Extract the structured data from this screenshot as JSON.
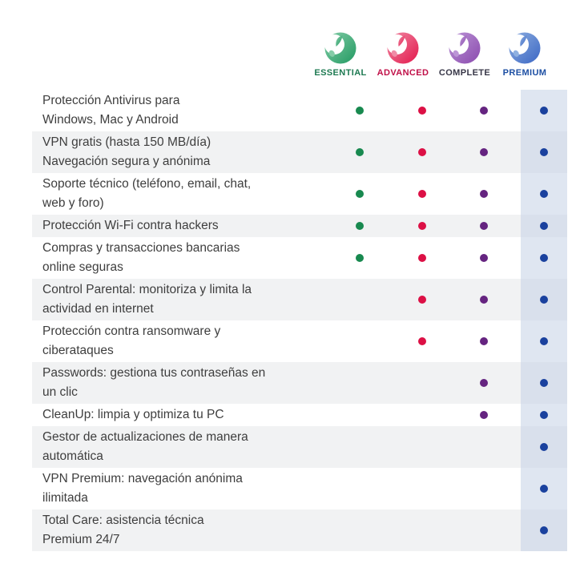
{
  "colors": {
    "background": "#ffffff",
    "stripe": "#f1f2f3",
    "premium_band": "#dfe6f1",
    "premium_band_on_stripe": "#d9e0ec",
    "feature_text": "#3e3e3e"
  },
  "chart_data": {
    "type": "table",
    "title": "",
    "legend_position": "top",
    "columns": [
      {
        "id": "essential",
        "label": "ESSENTIAL",
        "label_color": "#1e7a52",
        "icon": "panda-logo",
        "logo_light": "#85cda8",
        "logo_main": "#229a62",
        "dot_color": "#18894f"
      },
      {
        "id": "advanced",
        "label": "ADVANCED",
        "label_color": "#c01048",
        "icon": "panda-logo",
        "logo_light": "#f08ca6",
        "logo_main": "#e3174b",
        "dot_color": "#dc1045"
      },
      {
        "id": "complete",
        "label": "COMPLETE",
        "label_color": "#373647",
        "icon": "panda-logo",
        "logo_light": "#bc95d6",
        "logo_main": "#8a4aae",
        "dot_color": "#652480"
      },
      {
        "id": "premium",
        "label": "PREMIUM",
        "label_color": "#1d4fa3",
        "icon": "panda-logo",
        "logo_light": "#8fb0e0",
        "logo_main": "#3b66c4",
        "dot_color": "#1a419e",
        "column_highlight": "#dfe6f1"
      }
    ],
    "rows": [
      {
        "feature": "Protección Antivirus para Windows, Mac y Android",
        "lines": [
          "Protección Antivirus para",
          "Windows, Mac y Android"
        ],
        "included": [
          true,
          true,
          true,
          true
        ]
      },
      {
        "feature": "VPN gratis (hasta 150 MB/día) Navegación segura y anónima",
        "lines": [
          "VPN gratis (hasta 150 MB/día)",
          "Navegación segura y anónima"
        ],
        "included": [
          true,
          true,
          true,
          true
        ]
      },
      {
        "feature": "Soporte técnico (teléfono, email, chat, web y foro)",
        "lines": [
          "Soporte técnico (teléfono, email, chat,",
          "web y foro)"
        ],
        "included": [
          true,
          true,
          true,
          true
        ]
      },
      {
        "feature": "Protección Wi-Fi contra hackers",
        "lines": [
          "Protección Wi-Fi contra hackers"
        ],
        "included": [
          true,
          true,
          true,
          true
        ]
      },
      {
        "feature": "Compras y transacciones bancarias online seguras",
        "lines": [
          "Compras y transacciones bancarias",
          "online seguras"
        ],
        "included": [
          true,
          true,
          true,
          true
        ]
      },
      {
        "feature": "Control Parental: monitoriza y limita la actividad en internet",
        "lines": [
          "Control Parental: monitoriza y limita la",
          "actividad en internet"
        ],
        "included": [
          false,
          true,
          true,
          true
        ]
      },
      {
        "feature": "Protección contra ransomware y ciberataques",
        "lines": [
          "Protección contra ransomware y",
          "ciberataques"
        ],
        "included": [
          false,
          true,
          true,
          true
        ]
      },
      {
        "feature": "Passwords: gestiona tus contraseñas en un clic",
        "lines": [
          "Passwords: gestiona tus contraseñas en",
          "un clic"
        ],
        "included": [
          false,
          false,
          true,
          true
        ]
      },
      {
        "feature": "CleanUp: limpia y optimiza tu PC",
        "lines": [
          "CleanUp: limpia y optimiza tu PC"
        ],
        "included": [
          false,
          false,
          true,
          true
        ]
      },
      {
        "feature": "Gestor de actualizaciones de manera automática",
        "lines": [
          "Gestor de actualizaciones de manera",
          "automática"
        ],
        "included": [
          false,
          false,
          false,
          true
        ]
      },
      {
        "feature": "VPN Premium: navegación anónima ilimitada",
        "lines": [
          "VPN Premium: navegación anónima",
          "ilimitada"
        ],
        "included": [
          false,
          false,
          false,
          true
        ]
      },
      {
        "feature": "Total Care: asistencia técnica Premium 24/7",
        "lines": [
          "Total Care: asistencia técnica",
          "Premium 24/7"
        ],
        "included": [
          false,
          false,
          false,
          true
        ]
      }
    ]
  }
}
